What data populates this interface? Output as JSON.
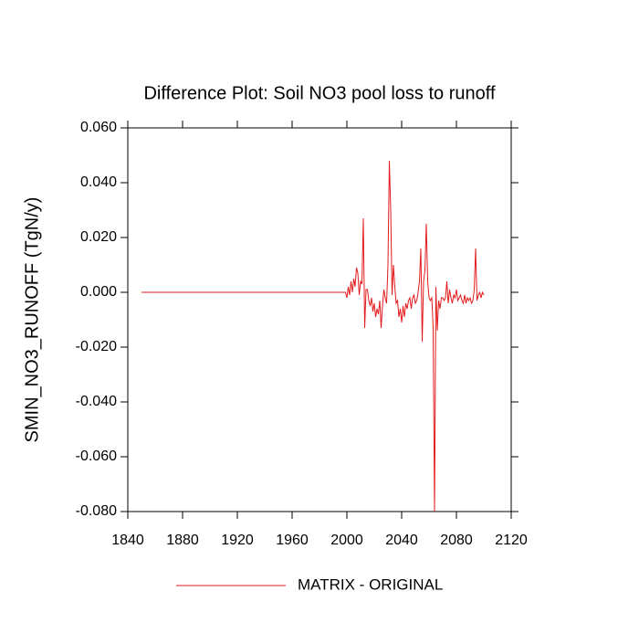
{
  "chart_data": {
    "type": "line",
    "title": "Difference Plot: Soil NO3 pool loss to runoff",
    "y_label": "SMIN_NO3_RUNOFF  (TgN/y)",
    "x": [
      1850,
      1999,
      2000,
      2001,
      2002,
      2003,
      2004,
      2005,
      2006,
      2007,
      2008,
      2009,
      2010,
      2011,
      2012,
      2013,
      2014,
      2015,
      2016,
      2017,
      2018,
      2019,
      2020,
      2021,
      2022,
      2023,
      2024,
      2025,
      2026,
      2027,
      2028,
      2029,
      2030,
      2031,
      2032,
      2033,
      2034,
      2035,
      2036,
      2037,
      2038,
      2039,
      2040,
      2041,
      2042,
      2043,
      2044,
      2045,
      2046,
      2047,
      2048,
      2049,
      2050,
      2051,
      2052,
      2053,
      2054,
      2055,
      2056,
      2057,
      2058,
      2059,
      2060,
      2061,
      2062,
      2063,
      2064,
      2065,
      2066,
      2067,
      2068,
      2069,
      2070,
      2071,
      2072,
      2073,
      2074,
      2075,
      2076,
      2077,
      2078,
      2079,
      2080,
      2081,
      2082,
      2083,
      2084,
      2085,
      2086,
      2087,
      2088,
      2089,
      2090,
      2091,
      2092,
      2093,
      2094,
      2095,
      2096,
      2097,
      2098,
      2099,
      2100
    ],
    "series": [
      {
        "name": "MATRIX - ORIGINAL",
        "color": "#e31a1c",
        "values": [
          0,
          0,
          -0.002,
          0.002,
          -0.001,
          0.004,
          0,
          0.005,
          0.002,
          0.009,
          0.007,
          -0.001,
          0.004,
          0.003,
          0.027,
          -0.013,
          0.001,
          0.001,
          -0.003,
          -0.005,
          -0.002,
          -0.007,
          -0.004,
          -0.009,
          -0.006,
          -0.008,
          -0.003,
          -0.013,
          -0.005,
          0.001,
          -0.002,
          -0.004,
          0.01,
          0.048,
          0.03,
          -0.001,
          0.01,
          0.002,
          -0.004,
          -0.003,
          -0.009,
          -0.006,
          -0.011,
          -0.005,
          -0.009,
          -0.004,
          -0.006,
          -0.003,
          -0.002,
          -0.006,
          -0.002,
          -0.001,
          -0.004,
          -0.003,
          0,
          0.004,
          0.016,
          -0.018,
          0.004,
          0.008,
          0.025,
          0.004,
          -0.002,
          -0.003,
          -0.002,
          -0.013,
          -0.08,
          0.002,
          -0.014,
          -0.003,
          -0.006,
          -0.002,
          -0.002,
          -0.003,
          -0.002,
          0.004,
          -0.004,
          0.001,
          -0.002,
          -0.004,
          -0.001,
          -0.002,
          0.001,
          -0.003,
          -0.002,
          -0.001,
          -0.003,
          -0.004,
          -0.001,
          -0.004,
          -0.002,
          -0.003,
          -0.002,
          -0.004,
          -0.003,
          0.001,
          0.016,
          -0.003,
          -0.001,
          0,
          -0.002,
          0,
          -0.001
        ]
      }
    ],
    "xlim": [
      1840,
      2120
    ],
    "xticks": [
      1840,
      1880,
      1920,
      1960,
      2000,
      2040,
      2080,
      2120
    ],
    "ylim": [
      -0.08,
      0.06
    ],
    "yticks": [
      {
        "value": -0.08,
        "label": "-0.080"
      },
      {
        "value": -0.06,
        "label": "-0.060"
      },
      {
        "value": -0.04,
        "label": "-0.040"
      },
      {
        "value": -0.02,
        "label": "-0.020"
      },
      {
        "value": 0,
        "label": "0.000"
      },
      {
        "value": 0.02,
        "label": "0.020"
      },
      {
        "value": 0.04,
        "label": "0.040"
      },
      {
        "value": 0.06,
        "label": "0.060"
      }
    ],
    "legend": "bottom"
  }
}
